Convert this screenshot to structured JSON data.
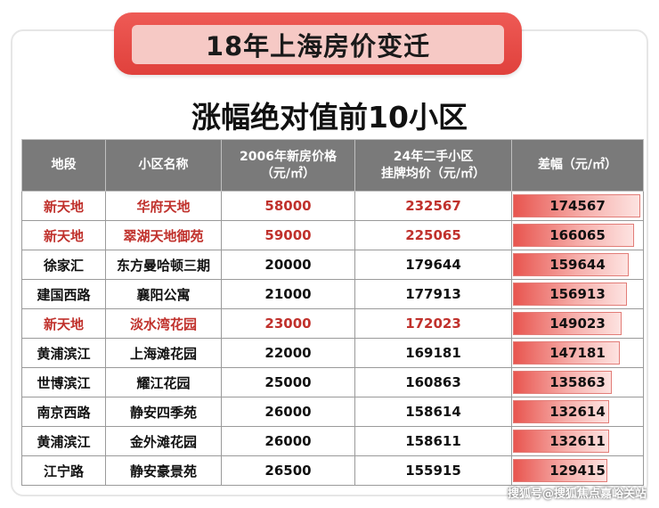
{
  "banner": {
    "title": "18年上海房价变迁"
  },
  "subtitle": "涨幅绝对值前10小区",
  "table": {
    "headers": [
      {
        "line1": "地段",
        "line2": ""
      },
      {
        "line1": "小区名称",
        "line2": ""
      },
      {
        "line1": "2006年新房价格",
        "line2": "（元/㎡）"
      },
      {
        "line1": "24年二手小区",
        "line2": "挂牌均价（元/㎡）"
      },
      {
        "line1": "差幅（元/㎡）",
        "line2": ""
      }
    ],
    "rows": [
      {
        "area": "新天地",
        "name": "华府天地",
        "price2006": "58000",
        "price2024": "232567",
        "diff": "174567",
        "diff_value": 174567,
        "highlight": true
      },
      {
        "area": "新天地",
        "name": "翠湖天地御苑",
        "price2006": "59000",
        "price2024": "225065",
        "diff": "166065",
        "diff_value": 166065,
        "highlight": true
      },
      {
        "area": "徐家汇",
        "name": "东方曼哈顿三期",
        "price2006": "20000",
        "price2024": "179644",
        "diff": "159644",
        "diff_value": 159644,
        "highlight": false
      },
      {
        "area": "建国西路",
        "name": "襄阳公寓",
        "price2006": "21000",
        "price2024": "177913",
        "diff": "156913",
        "diff_value": 156913,
        "highlight": false
      },
      {
        "area": "新天地",
        "name": "淡水湾花园",
        "price2006": "23000",
        "price2024": "172023",
        "diff": "149023",
        "diff_value": 149023,
        "highlight": true
      },
      {
        "area": "黄浦滨江",
        "name": "上海滩花园",
        "price2006": "22000",
        "price2024": "169181",
        "diff": "147181",
        "diff_value": 147181,
        "highlight": false
      },
      {
        "area": "世博滨江",
        "name": "耀江花园",
        "price2006": "25000",
        "price2024": "160863",
        "diff": "135863",
        "diff_value": 135863,
        "highlight": false
      },
      {
        "area": "南京西路",
        "name": "静安四季苑",
        "price2006": "26000",
        "price2024": "158614",
        "diff": "132614",
        "diff_value": 132614,
        "highlight": false
      },
      {
        "area": "黄浦滨江",
        "name": "金外滩花园",
        "price2006": "26000",
        "price2024": "158611",
        "diff": "132611",
        "diff_value": 132611,
        "highlight": false
      },
      {
        "area": "江宁路",
        "name": "静安豪景苑",
        "price2006": "26500",
        "price2024": "155915",
        "diff": "129415",
        "diff_value": 129415,
        "highlight": false
      }
    ]
  },
  "colors": {
    "banner_red": "#e0413c",
    "banner_pink": "#f6c9c5",
    "header_gray": "#7a7a7a",
    "highlight_red": "#c0312c"
  },
  "watermark": "搜狐号@搜狐焦点嘉峪关站"
}
